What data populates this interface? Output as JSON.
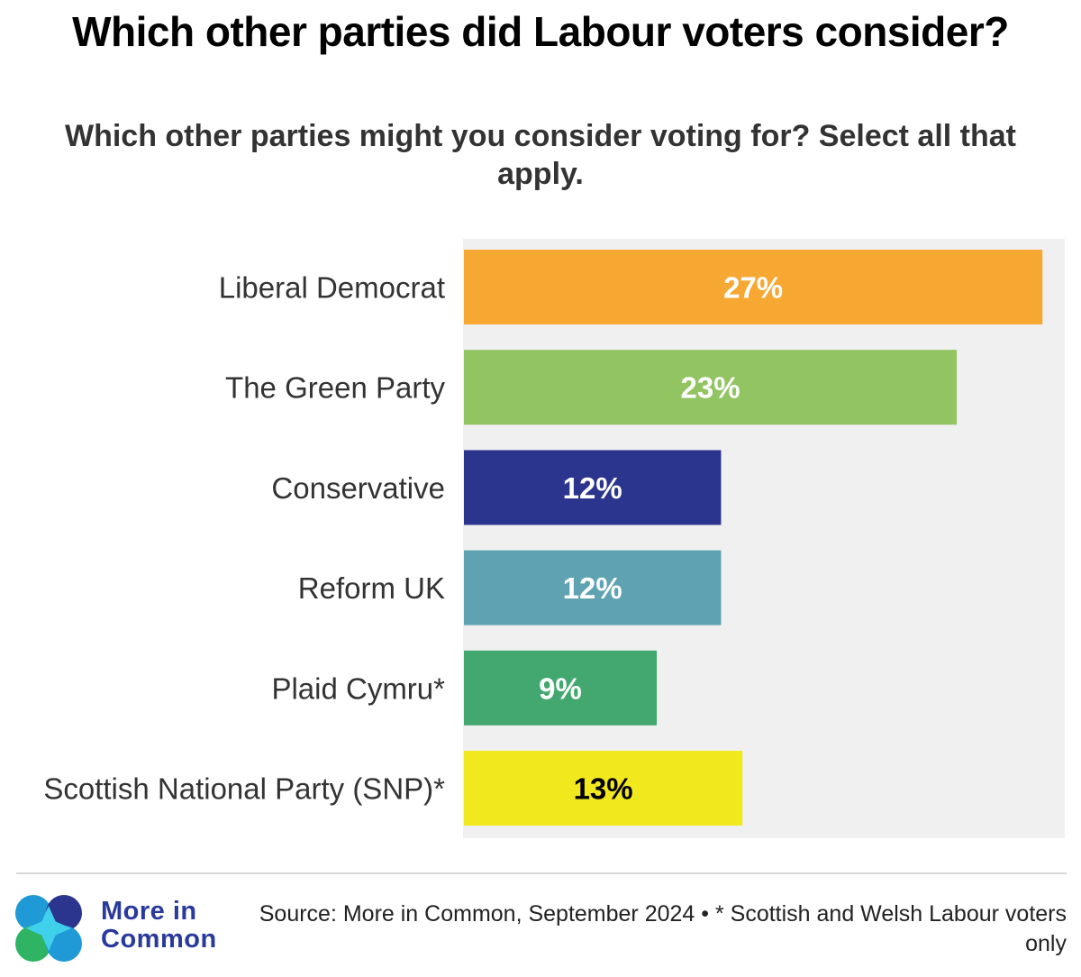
{
  "chart_data": {
    "type": "bar",
    "orientation": "horizontal",
    "title": "Which other parties did Labour voters consider?",
    "subtitle": "Which other parties might you consider voting for? Select all that apply.",
    "categories": [
      "Liberal Democrat",
      "The Green Party",
      "Conservative",
      "Reform UK",
      "Plaid Cymru*",
      "Scottish National Party (SNP)*"
    ],
    "values": [
      27,
      23,
      12,
      12,
      9,
      13
    ],
    "value_labels": [
      "27%",
      "23%",
      "12%",
      "12%",
      "9%",
      "13%"
    ],
    "colors": [
      "#f7a833",
      "#92c462",
      "#2b358d",
      "#5fa3b3",
      "#42a86f",
      "#f2e81e"
    ],
    "label_colors": [
      "#ffffff",
      "#ffffff",
      "#ffffff",
      "#ffffff",
      "#ffffff",
      "#000000"
    ],
    "xlim": [
      0,
      28
    ],
    "grid": false,
    "legend": "none"
  },
  "footer": {
    "brand_line1": "More in",
    "brand_line2": "Common",
    "source": "Source: More in Common, September 2024 • * Scottish and Welsh Labour voters only"
  }
}
